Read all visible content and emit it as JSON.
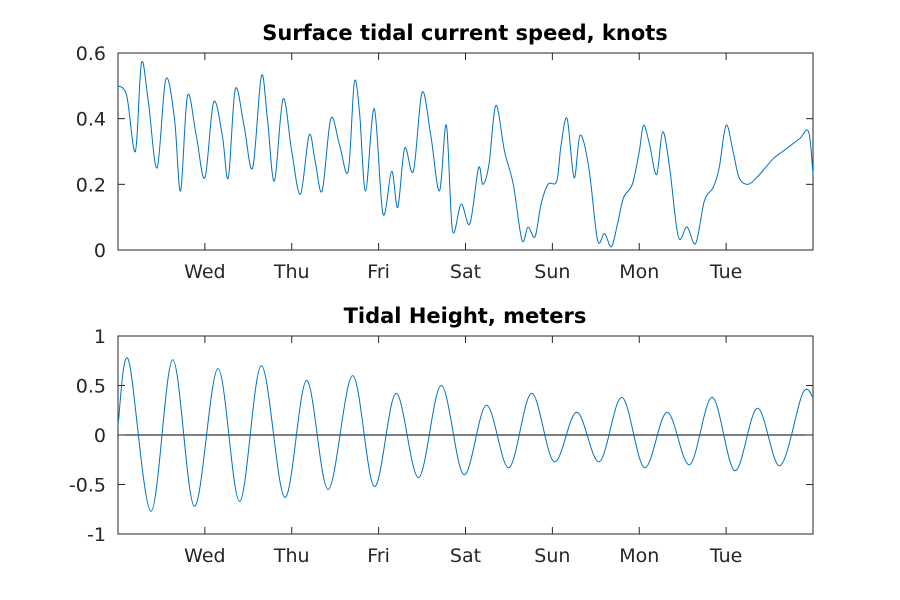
{
  "chart_data": [
    {
      "type": "line",
      "title": "Surface tidal current speed, knots",
      "xlabel": "",
      "ylabel": "",
      "x_tick_labels": [
        "Wed",
        "Thu",
        "Fri",
        "Sat",
        "Sun",
        "Mon",
        "Tue"
      ],
      "y_tick_labels": [
        "0",
        "0.2",
        "0.4",
        "0.6"
      ],
      "y_ticks": [
        0,
        0.2,
        0.4,
        0.6
      ],
      "xlim_days": [
        0,
        8
      ],
      "x_tick_days": [
        1,
        2,
        3,
        4,
        5,
        6,
        7
      ],
      "ylim": [
        0,
        0.6
      ],
      "grid": false,
      "color": "#0072bd",
      "x": [
        0.0,
        0.1,
        0.2,
        0.27,
        0.35,
        0.45,
        0.55,
        0.65,
        0.72,
        0.8,
        0.9,
        1.0,
        1.1,
        1.2,
        1.27,
        1.35,
        1.45,
        1.55,
        1.65,
        1.72,
        1.8,
        1.9,
        2.0,
        2.1,
        2.2,
        2.27,
        2.35,
        2.45,
        2.55,
        2.65,
        2.72,
        2.78,
        2.85,
        2.95,
        3.05,
        3.15,
        3.22,
        3.3,
        3.4,
        3.5,
        3.6,
        3.7,
        3.78,
        3.85,
        3.95,
        4.05,
        4.15,
        4.2,
        4.27,
        4.35,
        4.45,
        4.55,
        4.65,
        4.72,
        4.8,
        4.87,
        4.95,
        5.05,
        5.1,
        5.17,
        5.25,
        5.32,
        5.42,
        5.52,
        5.6,
        5.68,
        5.75,
        5.82,
        5.92,
        6.0,
        6.05,
        6.12,
        6.2,
        6.27,
        6.35,
        6.45,
        6.55,
        6.65,
        6.75,
        6.85,
        6.92,
        7.0,
        7.08,
        7.15,
        7.25,
        7.35,
        7.45,
        7.55,
        7.65,
        7.75,
        7.85,
        7.95,
        8.0
      ],
      "y": [
        0.5,
        0.47,
        0.3,
        0.57,
        0.45,
        0.25,
        0.52,
        0.4,
        0.18,
        0.47,
        0.35,
        0.22,
        0.45,
        0.35,
        0.22,
        0.49,
        0.38,
        0.25,
        0.53,
        0.4,
        0.21,
        0.46,
        0.3,
        0.17,
        0.35,
        0.27,
        0.18,
        0.4,
        0.32,
        0.24,
        0.51,
        0.42,
        0.18,
        0.43,
        0.11,
        0.24,
        0.13,
        0.31,
        0.24,
        0.48,
        0.35,
        0.18,
        0.38,
        0.06,
        0.14,
        0.08,
        0.25,
        0.2,
        0.26,
        0.44,
        0.3,
        0.2,
        0.03,
        0.07,
        0.04,
        0.14,
        0.2,
        0.21,
        0.32,
        0.4,
        0.22,
        0.35,
        0.25,
        0.03,
        0.05,
        0.01,
        0.08,
        0.16,
        0.2,
        0.3,
        0.38,
        0.32,
        0.23,
        0.36,
        0.25,
        0.04,
        0.07,
        0.02,
        0.15,
        0.19,
        0.25,
        0.38,
        0.3,
        0.22,
        0.2,
        0.22,
        0.25,
        0.28,
        0.3,
        0.32,
        0.34,
        0.36,
        0.23
      ]
    },
    {
      "type": "line",
      "title": "Tidal Height, meters",
      "xlabel": "",
      "ylabel": "",
      "x_tick_labels": [
        "Wed",
        "Thu",
        "Fri",
        "Sat",
        "Sun",
        "Mon",
        "Tue"
      ],
      "y_tick_labels": [
        "-1",
        "-0.5",
        "0",
        "0.5",
        "1"
      ],
      "y_ticks": [
        -1,
        -0.5,
        0,
        0.5,
        1
      ],
      "xlim_days": [
        0,
        8
      ],
      "x_tick_days": [
        1,
        2,
        3,
        4,
        5,
        6,
        7
      ],
      "ylim": [
        -1,
        1
      ],
      "zero_line": true,
      "grid": false,
      "color": "#0072bd",
      "x": [
        0.0,
        0.12,
        0.38,
        0.63,
        0.88,
        1.15,
        1.4,
        1.65,
        1.92,
        2.17,
        2.42,
        2.7,
        2.95,
        3.2,
        3.46,
        3.72,
        3.98,
        4.24,
        4.5,
        4.76,
        5.02,
        5.28,
        5.54,
        5.8,
        6.06,
        6.32,
        6.58,
        6.84,
        7.1,
        7.36,
        7.62,
        7.88,
        8.0
      ],
      "y": [
        0.1,
        0.76,
        -0.77,
        0.76,
        -0.72,
        0.67,
        -0.67,
        0.7,
        -0.63,
        0.55,
        -0.55,
        0.6,
        -0.52,
        0.42,
        -0.43,
        0.5,
        -0.4,
        0.3,
        -0.33,
        0.42,
        -0.27,
        0.23,
        -0.27,
        0.38,
        -0.33,
        0.23,
        -0.3,
        0.38,
        -0.36,
        0.27,
        -0.31,
        0.42,
        0.38
      ]
    }
  ]
}
